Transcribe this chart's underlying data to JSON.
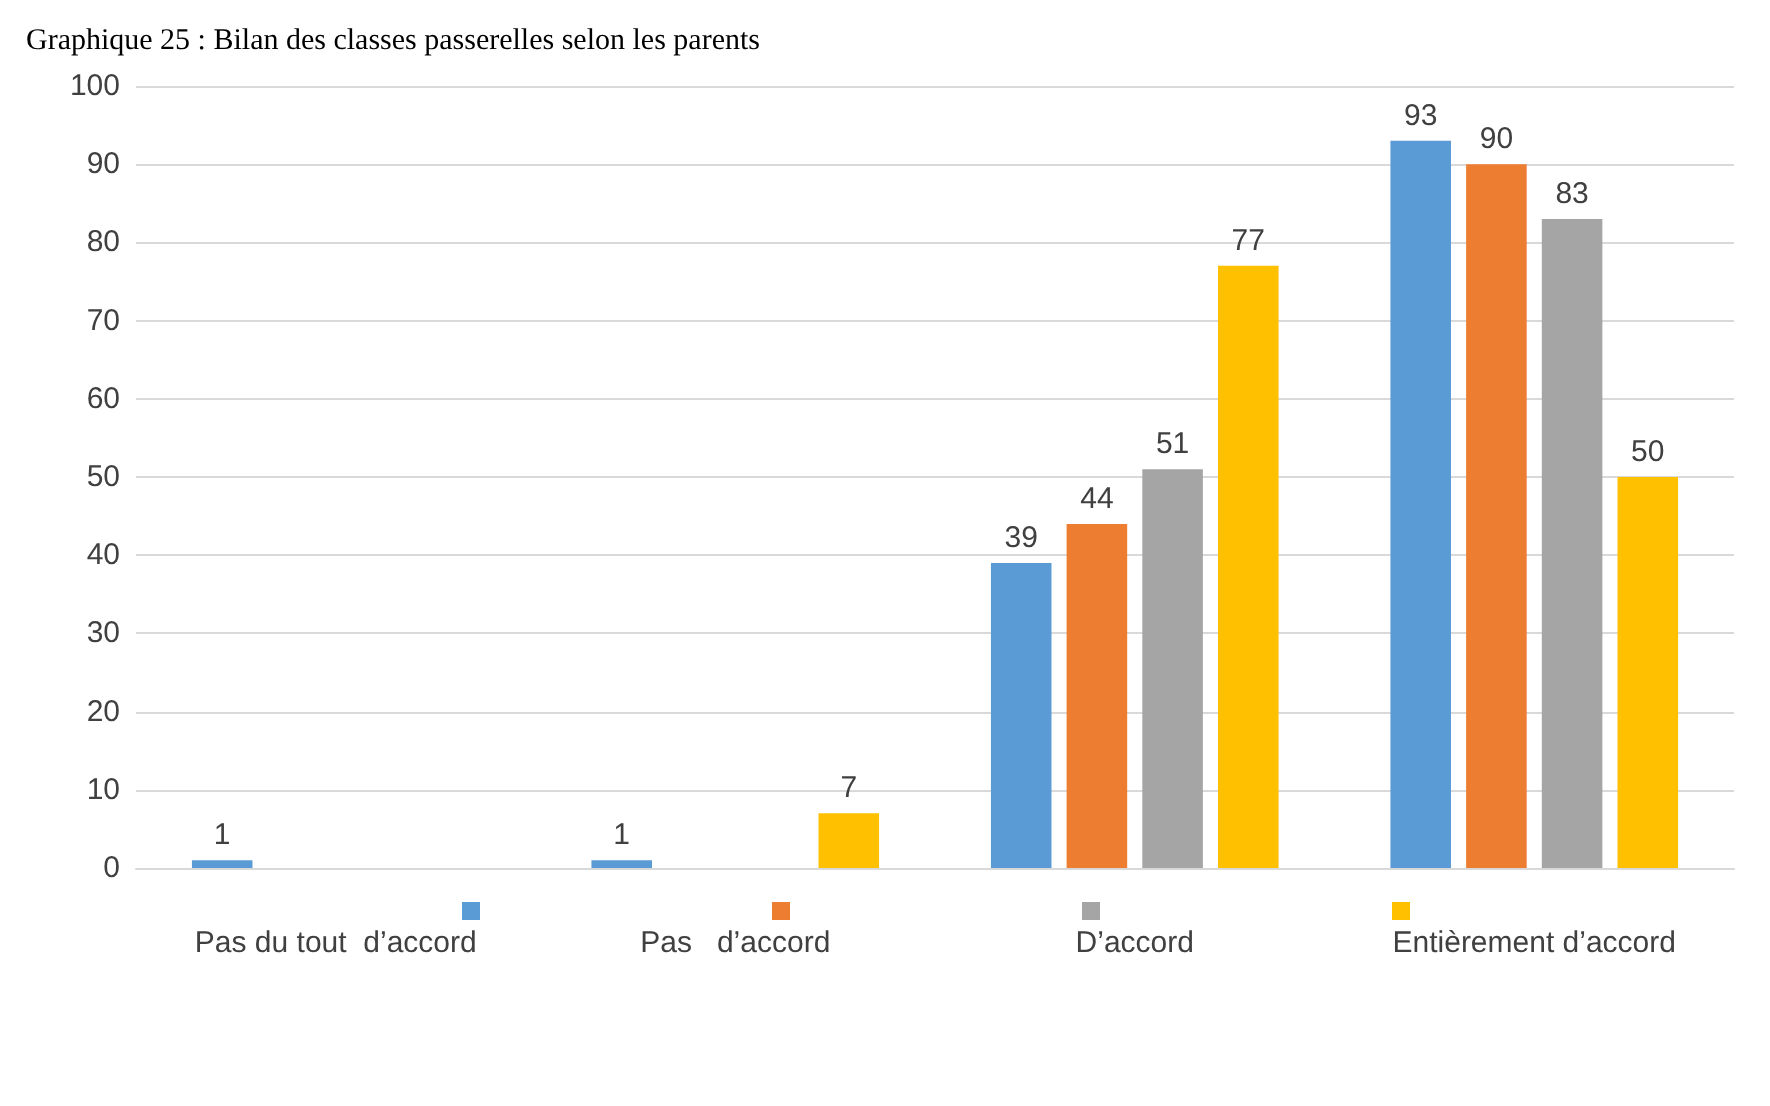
{
  "chart_data": {
    "type": "bar",
    "title": "Graphique 25 : Bilan des classes passerelles selon les parents",
    "categories": [
      "Pas du tout  d’accord",
      "Pas   d’accord",
      "D’accord",
      "Entièrement d’accord"
    ],
    "series": [
      {
        "color": "#5b9bd5",
        "values": [
          1,
          1,
          39,
          93
        ]
      },
      {
        "color": "#ed7d31",
        "values": [
          null,
          null,
          44,
          90
        ]
      },
      {
        "color": "#a5a5a5",
        "values": [
          null,
          null,
          51,
          83
        ]
      },
      {
        "color": "#ffc000",
        "values": [
          null,
          7,
          77,
          50
        ]
      }
    ],
    "ylim": [
      0,
      100
    ],
    "yticks": [
      0,
      10,
      20,
      30,
      40,
      50,
      60,
      70,
      80,
      90,
      100
    ],
    "grid": "y",
    "data_labels": true
  }
}
